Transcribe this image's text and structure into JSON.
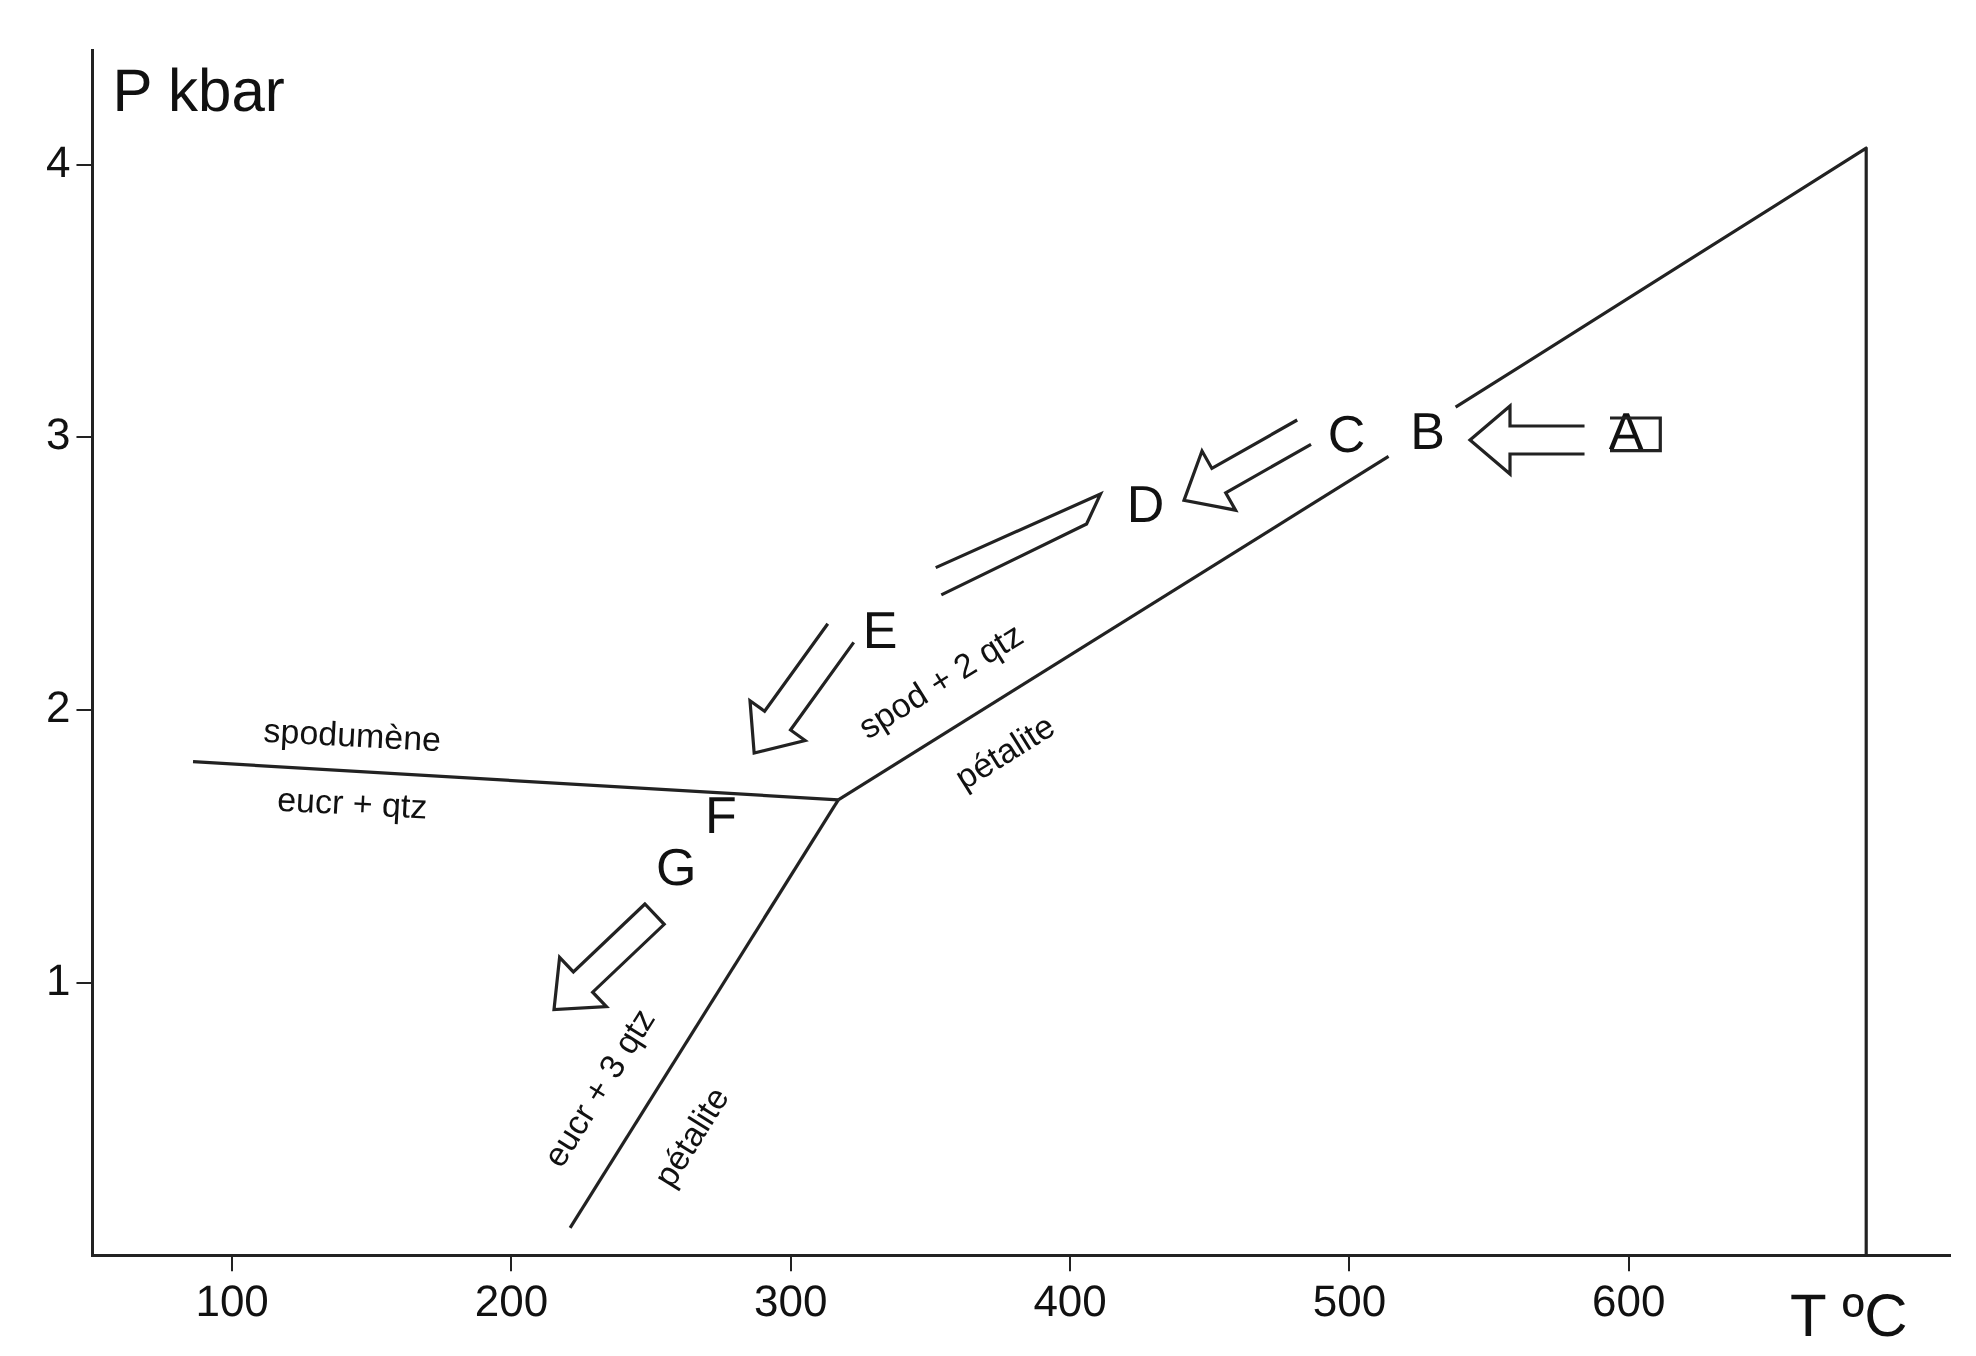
{
  "chart_data": {
    "type": "line",
    "xlabel": "T ºC",
    "ylabel": "P kbar",
    "xlim": [
      50,
      715
    ],
    "ylim": [
      0,
      4.42
    ],
    "xticks": [
      100,
      200,
      300,
      400,
      500,
      600
    ],
    "yticks": [
      1,
      2,
      3,
      4
    ],
    "grid": false,
    "legend": false,
    "marker": "none",
    "line_style": "solid",
    "series": [
      {
        "color": "#222222",
        "x": [
          86,
          317
        ],
        "values": [
          1.81,
          1.67
        ]
      },
      {
        "color": "#222222",
        "x": [
          221,
          317
        ],
        "values": [
          0.1,
          1.67
        ]
      },
      {
        "color": "#222222",
        "x": [
          317,
          514
        ],
        "values": [
          1.67,
          2.93
        ]
      },
      {
        "color": "#222222",
        "x": [
          538,
          685,
          685
        ],
        "values": [
          3.11,
          4.06,
          0
        ]
      }
    ],
    "annotations": [
      "A",
      "B",
      "C",
      "D",
      "E",
      "F",
      "G",
      "spodumène",
      "eucr + qtz",
      "spod + 2 qtz",
      "pétalite",
      "eucr + 3 qtz",
      "pétalite"
    ]
  }
}
